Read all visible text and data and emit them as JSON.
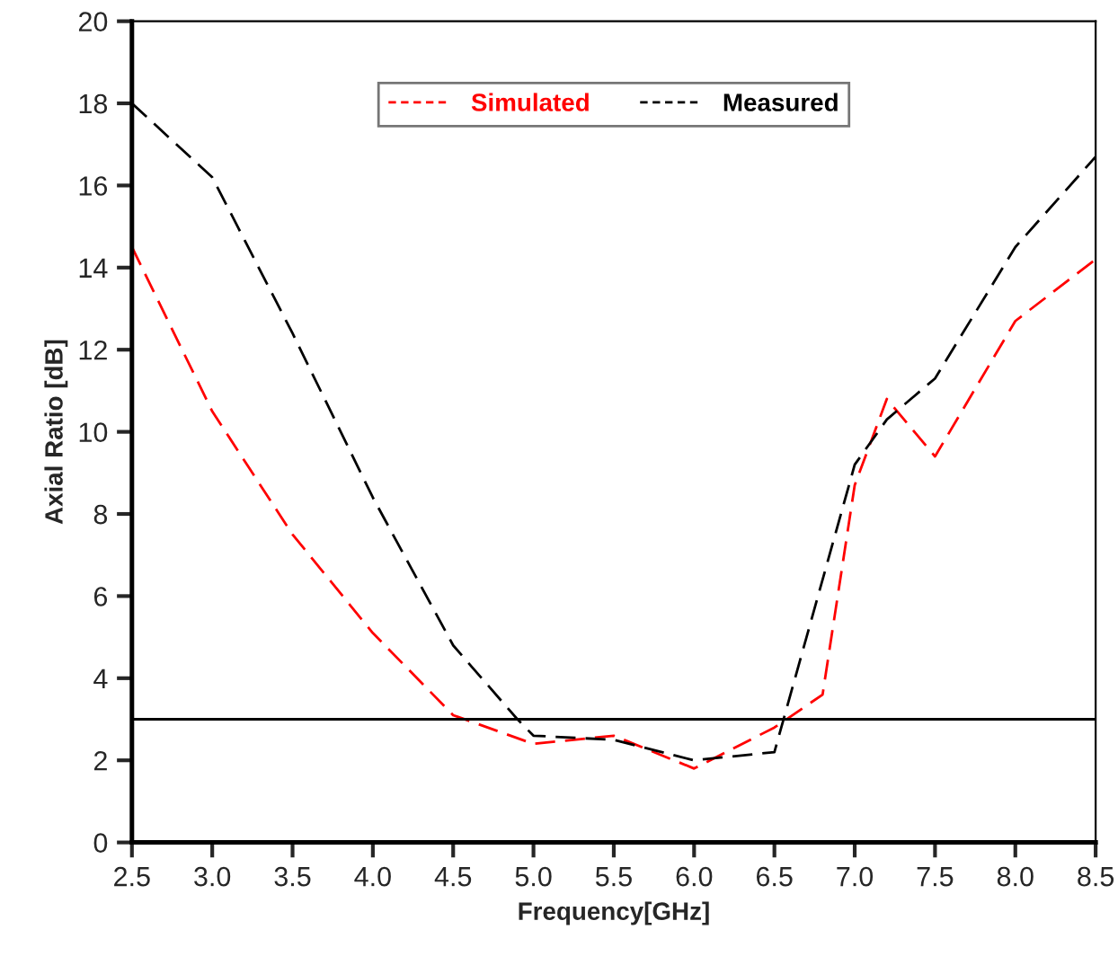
{
  "chart_data": {
    "type": "line",
    "xlabel": "Frequency[GHz]",
    "ylabel": "Axial Ratio [dB]",
    "xlim": [
      2.5,
      8.5
    ],
    "ylim": [
      0,
      20
    ],
    "xticks": [
      {
        "value": 2.5,
        "label": "2.5"
      },
      {
        "value": 3,
        "label": "3.0"
      },
      {
        "value": 3.5,
        "label": "3.5"
      },
      {
        "value": 4,
        "label": "4.0"
      },
      {
        "value": 4.5,
        "label": "4.5"
      },
      {
        "value": 5,
        "label": "5.0"
      },
      {
        "value": 5.5,
        "label": "5.5"
      },
      {
        "value": 6,
        "label": "6.0"
      },
      {
        "value": 6.5,
        "label": "6.5"
      },
      {
        "value": 7,
        "label": "7.0"
      },
      {
        "value": 7.5,
        "label": "7.5"
      },
      {
        "value": 8,
        "label": "8.0"
      },
      {
        "value": 8.5,
        "label": "8.5"
      }
    ],
    "yticks": [
      0,
      2,
      4,
      6,
      8,
      10,
      12,
      14,
      16,
      18,
      20
    ],
    "series": [
      {
        "name": "Simulated",
        "color": "#ff0000",
        "x": [
          2.5,
          3.0,
          3.5,
          4.0,
          4.5,
          5.0,
          5.5,
          6.0,
          6.5,
          6.8,
          7.0,
          7.2,
          7.5,
          8.0,
          8.5
        ],
        "values": [
          14.5,
          10.5,
          7.5,
          5.1,
          3.1,
          2.4,
          2.6,
          1.8,
          2.8,
          3.6,
          8.7,
          10.8,
          9.4,
          12.7,
          14.2
        ]
      },
      {
        "name": "Measured",
        "color": "#000000",
        "x": [
          2.5,
          3.0,
          3.5,
          4.0,
          4.5,
          4.9,
          5.0,
          5.5,
          6.0,
          6.5,
          7.0,
          7.2,
          7.5,
          8.0,
          8.5
        ],
        "values": [
          18.0,
          16.2,
          12.4,
          8.4,
          4.8,
          3.0,
          2.6,
          2.5,
          2.0,
          2.2,
          9.2,
          10.3,
          11.3,
          14.5,
          16.7
        ]
      }
    ],
    "ref_lines": [
      {
        "axis": "y",
        "value": 3,
        "color": "#000000",
        "line_style": "solid"
      }
    ],
    "line_style": "dashed",
    "marker": "none",
    "grid": false,
    "legend": "top"
  }
}
